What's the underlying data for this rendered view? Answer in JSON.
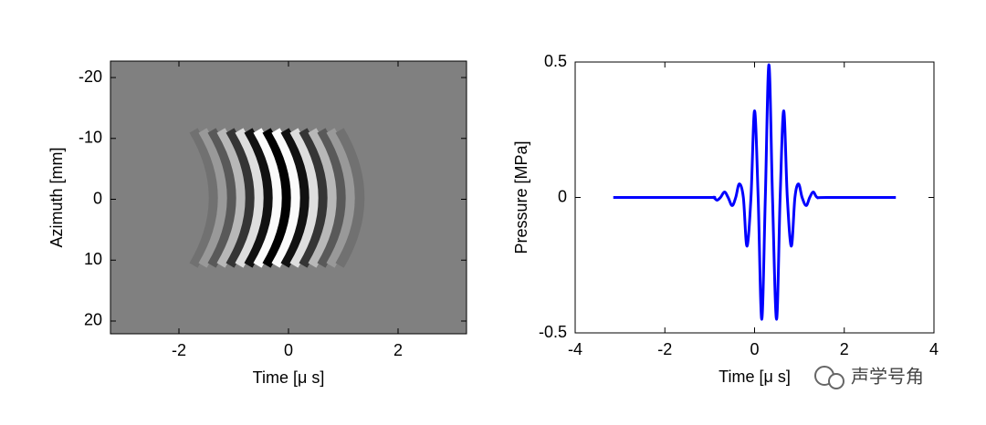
{
  "chart_data": [
    {
      "type": "image",
      "xlabel": "Time [μ s]",
      "ylabel": "Azimuth [mm]",
      "xlim": [
        -3.25,
        3.25
      ],
      "xticks": [
        -2,
        0,
        2
      ],
      "ylim": [
        -22.7,
        22.1
      ],
      "yticks": [
        -20,
        -10,
        0,
        10,
        20
      ],
      "yreverse": true
    },
    {
      "type": "line",
      "xlabel": "Time [μ s]",
      "ylabel": "Pressure [MPa]",
      "xlim": [
        -4,
        4
      ],
      "xticks": [
        -4,
        -2,
        0,
        2,
        4
      ],
      "ylim": [
        -0.5,
        0.5
      ],
      "yticks": [
        -0.5,
        0,
        0.5
      ],
      "color": "#0000ff",
      "x": [
        -3.15,
        -1.1,
        -0.92,
        -0.84,
        -0.76,
        -0.67,
        -0.59,
        -0.5,
        -0.42,
        -0.34,
        -0.25,
        -0.17,
        -0.08,
        0.0,
        0.08,
        0.16,
        0.24,
        0.32,
        0.4,
        0.49,
        0.57,
        0.65,
        0.73,
        0.82,
        0.9,
        0.98,
        1.06,
        1.15,
        1.23,
        1.31,
        1.4,
        1.6,
        3.15
      ],
      "values": [
        0,
        0,
        0,
        -0.01,
        0,
        0.02,
        0,
        -0.03,
        0,
        0.05,
        0,
        -0.18,
        0,
        0.32,
        0,
        -0.45,
        0,
        0.49,
        0,
        -0.45,
        0,
        0.32,
        0,
        -0.18,
        0,
        0.05,
        0,
        -0.03,
        0,
        0.02,
        0,
        0,
        0
      ]
    }
  ],
  "watermark": "声学号角"
}
